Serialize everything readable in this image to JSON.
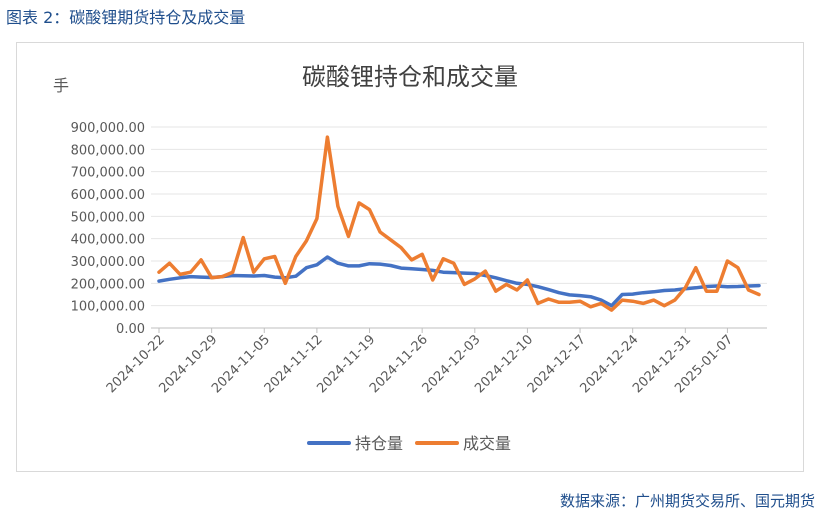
{
  "caption": "图表 2：碳酸锂期货持仓及成交量",
  "source": "数据来源：广州期货交易所、国元期货",
  "chart_data": {
    "type": "line",
    "title": "碳酸锂持仓和成交量",
    "ylabel": "手",
    "xlabel": "",
    "ylim": [
      0,
      900000
    ],
    "yticks": [
      0,
      100000,
      200000,
      300000,
      400000,
      500000,
      600000,
      700000,
      800000,
      900000
    ],
    "ytick_labels": [
      "0.00",
      "100,000.00",
      "200,000.00",
      "300,000.00",
      "400,000.00",
      "500,000.00",
      "600,000.00",
      "700,000.00",
      "800,000.00",
      "900,000.00"
    ],
    "xtick_labels": [
      "2024-10-22",
      "2024-10-29",
      "2024-11-05",
      "2024-11-12",
      "2024-11-19",
      "2024-11-26",
      "2024-12-03",
      "2024-12-10",
      "2024-12-17",
      "2024-12-24",
      "2024-12-31",
      "2025-01-07"
    ],
    "x": [
      "2024-10-22",
      "2024-10-23",
      "2024-10-24",
      "2024-10-25",
      "2024-10-28",
      "2024-10-29",
      "2024-10-30",
      "2024-10-31",
      "2024-11-01",
      "2024-11-04",
      "2024-11-05",
      "2024-11-06",
      "2024-11-07",
      "2024-11-08",
      "2024-11-11",
      "2024-11-12",
      "2024-11-13",
      "2024-11-14",
      "2024-11-15",
      "2024-11-18",
      "2024-11-19",
      "2024-11-20",
      "2024-11-21",
      "2024-11-22",
      "2024-11-25",
      "2024-11-26",
      "2024-11-27",
      "2024-11-28",
      "2024-11-29",
      "2024-12-02",
      "2024-12-03",
      "2024-12-04",
      "2024-12-05",
      "2024-12-06",
      "2024-12-09",
      "2024-12-10",
      "2024-12-11",
      "2024-12-12",
      "2024-12-13",
      "2024-12-16",
      "2024-12-17",
      "2024-12-18",
      "2024-12-19",
      "2024-12-20",
      "2024-12-23",
      "2024-12-24",
      "2024-12-25",
      "2024-12-26",
      "2024-12-27",
      "2024-12-30",
      "2024-12-31",
      "2025-01-02",
      "2025-01-03",
      "2025-01-06",
      "2025-01-07",
      "2025-01-08",
      "2025-01-09",
      "2025-01-10"
    ],
    "series": [
      {
        "name": "持仓量",
        "color": "#4472c4",
        "values": [
          210000,
          218000,
          225000,
          230000,
          228000,
          226000,
          230000,
          235000,
          234000,
          233000,
          235000,
          228000,
          225000,
          232000,
          270000,
          283000,
          318000,
          290000,
          278000,
          278000,
          288000,
          286000,
          280000,
          268000,
          265000,
          262000,
          258000,
          250000,
          248000,
          246000,
          244000,
          235000,
          225000,
          212000,
          200000,
          195000,
          185000,
          172000,
          158000,
          148000,
          145000,
          140000,
          125000,
          100000,
          150000,
          152000,
          158000,
          162000,
          168000,
          170000,
          176000,
          180000,
          186000,
          188000,
          185000,
          186000,
          188000,
          190000
        ]
      },
      {
        "name": "成交量",
        "color": "#ed7d31",
        "values": [
          250000,
          290000,
          240000,
          250000,
          305000,
          225000,
          230000,
          250000,
          405000,
          250000,
          310000,
          320000,
          200000,
          320000,
          390000,
          490000,
          855000,
          545000,
          410000,
          560000,
          530000,
          430000,
          395000,
          360000,
          305000,
          330000,
          215000,
          310000,
          290000,
          195000,
          220000,
          255000,
          165000,
          195000,
          170000,
          215000,
          110000,
          130000,
          115000,
          115000,
          120000,
          95000,
          110000,
          80000,
          125000,
          120000,
          110000,
          125000,
          100000,
          125000,
          180000,
          270000,
          165000,
          165000,
          300000,
          270000,
          170000,
          150000
        ]
      }
    ],
    "legend": "bottom-center",
    "grid": true
  }
}
